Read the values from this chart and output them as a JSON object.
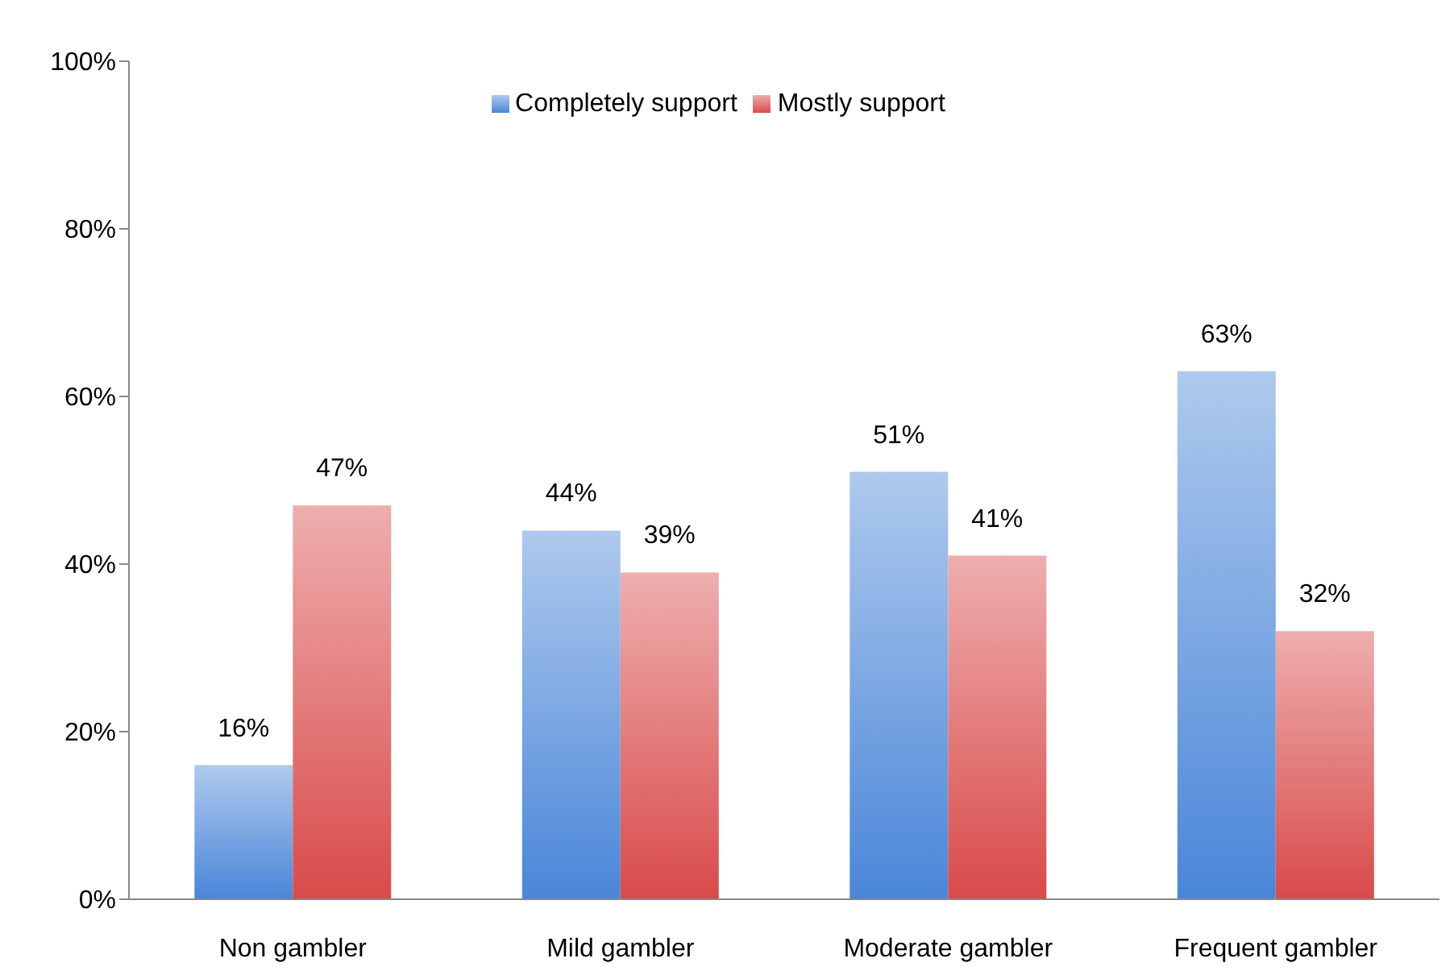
{
  "chart_data": {
    "type": "bar",
    "categories": [
      "Non gambler",
      "Mild gambler",
      "Moderate gambler",
      "Frequent gambler"
    ],
    "series": [
      {
        "name": "Completely support",
        "color": "#4a86d8",
        "values": [
          16,
          44,
          51,
          63
        ]
      },
      {
        "name": "Mostly support",
        "color": "#d94a4a",
        "values": [
          47,
          39,
          41,
          32
        ]
      }
    ],
    "ylim": [
      0,
      100
    ],
    "yticks": [
      {
        "value": 0,
        "label": "0%"
      },
      {
        "value": 20,
        "label": "20%"
      },
      {
        "value": 40,
        "label": "40%"
      },
      {
        "value": 60,
        "label": "60%"
      },
      {
        "value": 80,
        "label": "80%"
      },
      {
        "value": 100,
        "label": "100%"
      }
    ],
    "value_labels": [
      [
        "16%",
        "44%",
        "51%",
        "63%"
      ],
      [
        "47%",
        "39%",
        "41%",
        "32%"
      ]
    ],
    "legend": "top",
    "grid": false
  }
}
